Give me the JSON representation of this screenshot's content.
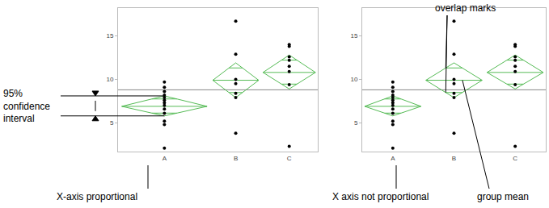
{
  "chart_data": [
    {
      "type": "scatter",
      "categories": [
        "A",
        "B",
        "C"
      ],
      "groups": [
        {
          "values": [
            9.7,
            9.1,
            8.6,
            8.2,
            7.9,
            7.6,
            7.3,
            7.0,
            6.6,
            6.1,
            5.2,
            4.8,
            2.1
          ],
          "mean": 6.9,
          "ci_low": 5.8,
          "ci_high": 8.1
        },
        {
          "values": [
            16.7,
            12.9,
            10.0,
            9.5,
            8.4,
            7.9,
            3.8
          ],
          "mean": 9.9,
          "ci_low": 7.9,
          "ci_high": 11.9
        },
        {
          "values": [
            14.0,
            13.8,
            12.6,
            12.2,
            11.5,
            10.9,
            9.4,
            2.3
          ],
          "mean": 10.8,
          "ci_low": 8.9,
          "ci_high": 12.8
        }
      ],
      "grand_mean": 8.8,
      "ylim": [
        1.7,
        18.2
      ],
      "yticks": [
        5,
        10,
        15
      ],
      "color": "#55bb55",
      "ci_label": "95%\nconfidence\ninterval",
      "axis_note": "X-axis proportional"
    },
    {
      "type": "scatter",
      "categories": [
        "A",
        "B",
        "C"
      ],
      "groups": [
        {
          "values": [
            9.7,
            9.1,
            8.6,
            8.2,
            7.9,
            7.6,
            7.3,
            7.0,
            6.6,
            6.1,
            5.2,
            4.8,
            2.1
          ],
          "mean": 6.9,
          "ci_low": 5.8,
          "ci_high": 8.1
        },
        {
          "values": [
            16.7,
            12.9,
            10.0,
            9.5,
            8.4,
            7.9,
            3.8
          ],
          "mean": 9.9,
          "ci_low": 7.9,
          "ci_high": 11.9
        },
        {
          "values": [
            14.0,
            13.8,
            12.6,
            12.2,
            11.5,
            10.9,
            9.4,
            2.3
          ],
          "mean": 10.8,
          "ci_low": 8.9,
          "ci_high": 12.8
        }
      ],
      "grand_mean": 8.8,
      "ylim": [
        1.7,
        18.2
      ],
      "yticks": [
        5,
        10,
        15
      ],
      "color": "#55bb55",
      "axis_note": "X axis not proportional",
      "overlap_label": "overlap marks",
      "mean_label": "group mean"
    }
  ]
}
